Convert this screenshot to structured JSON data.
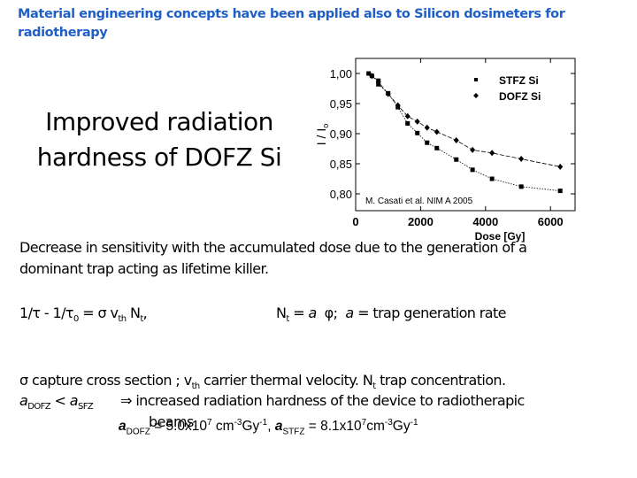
{
  "slide": {
    "title": "Material engineering concepts have been  applied also to Silicon dosimeters for radiotherapy",
    "headline_line1": "Improved radiation",
    "headline_line2": "hardness of DOFZ Si",
    "para1_line1": "Decrease in sensitivity with the accumulated dose due to the generation of a",
    "para1_line2": "dominant trap acting as lifetime killer.",
    "eq1": "1/τ - 1/τ₀ = σ vth Nt,",
    "eq2": "Nt = a φ;  a = trap generation rate",
    "def_line": "σ capture cross section ; vth carrier thermal velocity. Nt trap concentration.",
    "compare": "aDOFZ < aSFZ",
    "arrow": "⇒",
    "conclusion_line1": "increased radiation hardness of the device to radiotherapic",
    "conclusion_line2": "beams.",
    "values": "aDOFZ = 5.0x10^7 cm^-3Gy^-1, aSTFZ = 8.1x10^7cm^-3Gy^-1",
    "color_title": "#1f5fc8"
  },
  "chart_data": {
    "type": "scatter",
    "title": "",
    "xlabel": "Dose [Gy]",
    "ylabel": "I / I0",
    "xlim": [
      0,
      7000
    ],
    "ylim": [
      0.79,
      1.02
    ],
    "xticks": [
      "0",
      "2000",
      "4000",
      "6000"
    ],
    "yticks": [
      "0,80",
      "0,85",
      "0,90",
      "0,95",
      "1,00"
    ],
    "annotation": "M. Casati et al. NIM A 2005",
    "legend": [
      "STFZ Si",
      "DOFZ Si"
    ],
    "legend_position": "upper right",
    "grid": false,
    "series": [
      {
        "name": "STFZ Si",
        "marker": "square",
        "x": [
          400,
          500,
          700,
          700,
          1000,
          1300,
          1600,
          1900,
          2200,
          2500,
          3100,
          3600,
          4200,
          5100,
          6300
        ],
        "y": [
          1.0,
          0.996,
          0.988,
          0.982,
          0.967,
          0.944,
          0.917,
          0.901,
          0.885,
          0.876,
          0.857,
          0.84,
          0.825,
          0.812,
          0.805
        ]
      },
      {
        "name": "DOFZ Si",
        "marker": "diamond",
        "x": [
          500,
          700,
          1000,
          1300,
          1600,
          1900,
          2200,
          2500,
          3100,
          3600,
          4200,
          5100,
          6300
        ],
        "y": [
          0.996,
          0.986,
          0.966,
          0.947,
          0.929,
          0.92,
          0.91,
          0.903,
          0.889,
          0.873,
          0.868,
          0.858,
          0.845
        ]
      }
    ]
  }
}
